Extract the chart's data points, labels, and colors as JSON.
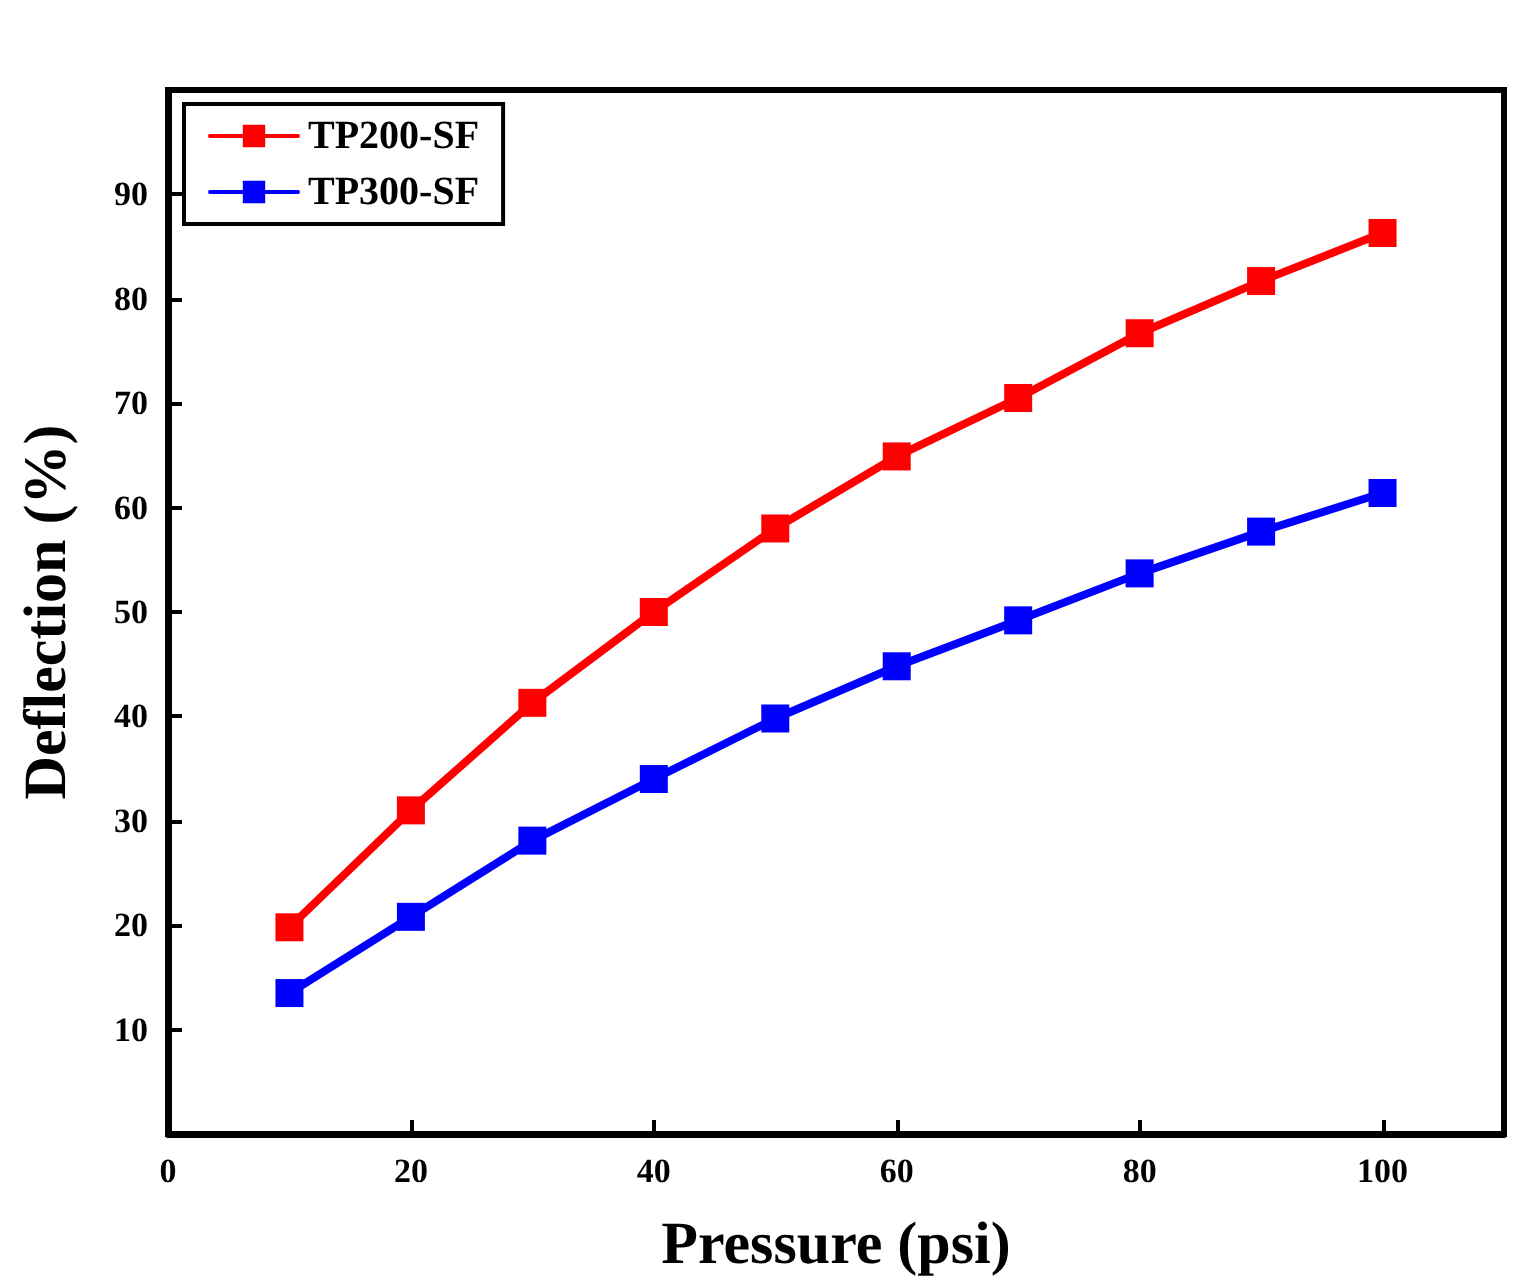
{
  "chart_data": {
    "type": "line",
    "xlabel": "Pressure (psi)",
    "ylabel": "Deflection (%)",
    "x": [
      10,
      20,
      30,
      40,
      50,
      60,
      70,
      80,
      90,
      100
    ],
    "series": [
      {
        "name": "TP200-SF",
        "color": "#ff0000",
        "values": [
          19.8,
          31,
          41.3,
          50,
          58,
          64.9,
          70.5,
          76.7,
          81.7,
          86.3
        ]
      },
      {
        "name": "TP300-SF",
        "color": "#0000ff",
        "values": [
          13.5,
          20.8,
          28.1,
          34,
          39.8,
          44.8,
          49.2,
          53.7,
          57.7,
          61.4
        ]
      }
    ],
    "xlim": [
      0,
      110
    ],
    "xticks": [
      0,
      20,
      40,
      60,
      80,
      100
    ],
    "ylim": [
      0,
      100
    ],
    "yticks": [
      10,
      20,
      30,
      40,
      50,
      60,
      70,
      80,
      90
    ],
    "grid": false,
    "legend": "top left",
    "marker": "square",
    "line_style": "solid"
  }
}
